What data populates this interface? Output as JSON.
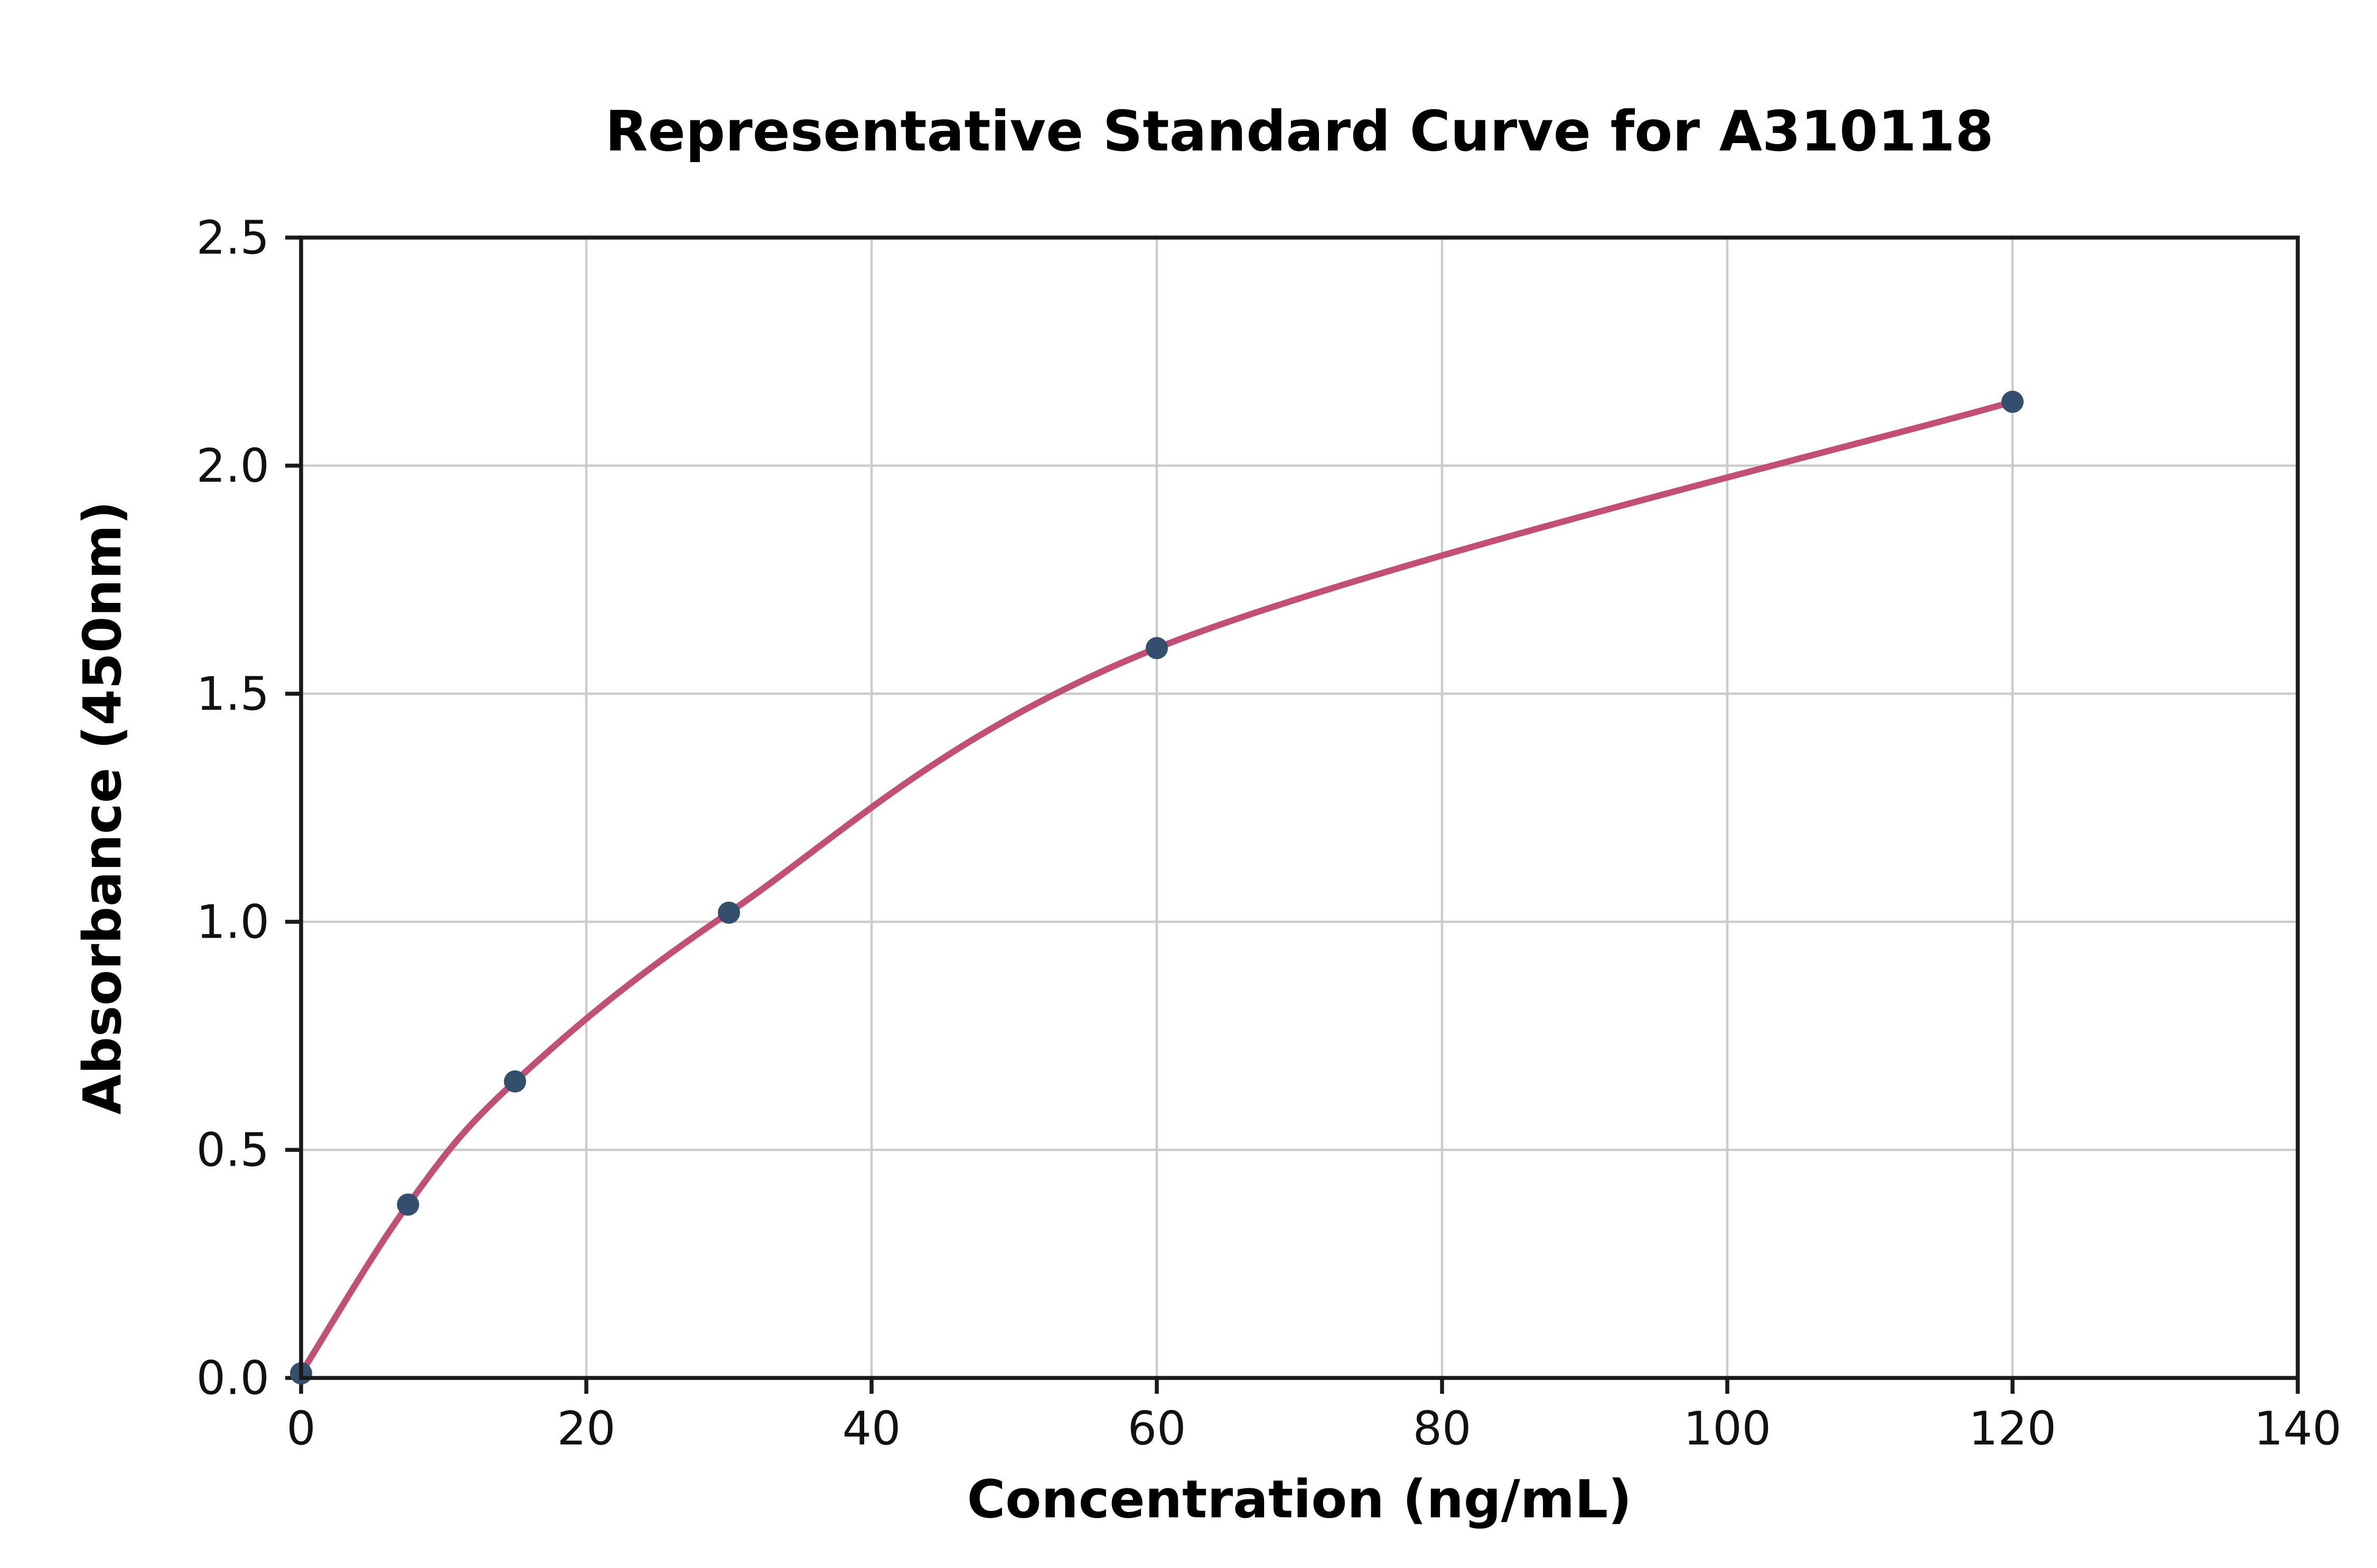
{
  "chart_data": {
    "type": "scatter",
    "title": "Representative Standard Curve for A310118",
    "xlabel": "Concentration (ng/mL)",
    "ylabel": "Absorbance (450nm)",
    "xlim": [
      0,
      140
    ],
    "ylim": [
      0,
      2.5
    ],
    "x_ticks": [
      0,
      20,
      40,
      60,
      80,
      100,
      120,
      140
    ],
    "x_tick_labels": [
      "0",
      "20",
      "40",
      "60",
      "80",
      "100",
      "120",
      "140"
    ],
    "y_ticks": [
      0,
      0.5,
      1,
      1.5,
      2,
      2.5
    ],
    "y_tick_labels": [
      "0.0",
      "0.5",
      "1.0",
      "1.5",
      "2.0",
      "2.5"
    ],
    "grid": true,
    "legend": "none",
    "series": [
      {
        "name": "standard-points",
        "type": "scatter",
        "color": "#334f6d",
        "marker_radius": 7,
        "x": [
          0,
          7.5,
          15,
          30,
          60,
          120
        ],
        "y": [
          0.01,
          0.38,
          0.65,
          1.02,
          1.6,
          2.14
        ]
      },
      {
        "name": "fitted-curve",
        "type": "line",
        "color": "#c14f76",
        "stroke_width": 4,
        "x": [
          0,
          7.5,
          15,
          30,
          60,
          120
        ],
        "y": [
          0.01,
          0.38,
          0.65,
          1.02,
          1.6,
          2.14
        ]
      }
    ],
    "colors": {
      "background": "#ffffff",
      "grid": "#cccccc",
      "axis": "#1a1a1a",
      "text": "#000000"
    }
  }
}
